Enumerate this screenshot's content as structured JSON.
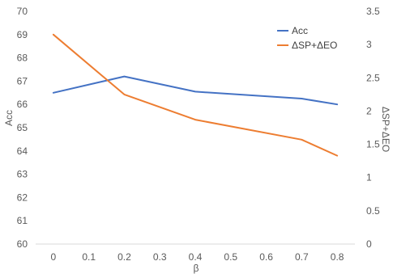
{
  "chart_data": {
    "type": "line",
    "x": [
      0,
      0.1,
      0.2,
      0.3,
      0.4,
      0.5,
      0.6,
      0.7,
      0.8
    ],
    "x_tick_labels": [
      "0",
      "0.1",
      "0.2",
      "0.3",
      "0.4",
      "0.5",
      "0.6",
      "0.7",
      "0.8"
    ],
    "xlabel": "β",
    "ylabel_left": "Acc",
    "ylabel_right": "ΔSP+ΔEO",
    "ylim_left": [
      60,
      70
    ],
    "ylim_right": [
      0,
      3.5
    ],
    "y_ticks_left": [
      "60",
      "61",
      "62",
      "63",
      "64",
      "65",
      "66",
      "67",
      "68",
      "69",
      "70"
    ],
    "y_ticks_right": [
      "0",
      "0.5",
      "1",
      "1.5",
      "2",
      "2.5",
      "3",
      "3.5"
    ],
    "legend_position": "top-right",
    "grid": false,
    "series": [
      {
        "name": "Acc",
        "axis": "left",
        "color": "#4472C4",
        "x": [
          0,
          0.2,
          0.4,
          0.7,
          0.8
        ],
        "values": [
          66.5,
          67.2,
          66.55,
          66.25,
          66.0
        ]
      },
      {
        "name": "ΔSP+ΔEO",
        "axis": "right",
        "color": "#ED7D31",
        "x": [
          0,
          0.2,
          0.4,
          0.7,
          0.8
        ],
        "values": [
          3.15,
          2.25,
          1.87,
          1.57,
          1.33
        ]
      }
    ]
  }
}
